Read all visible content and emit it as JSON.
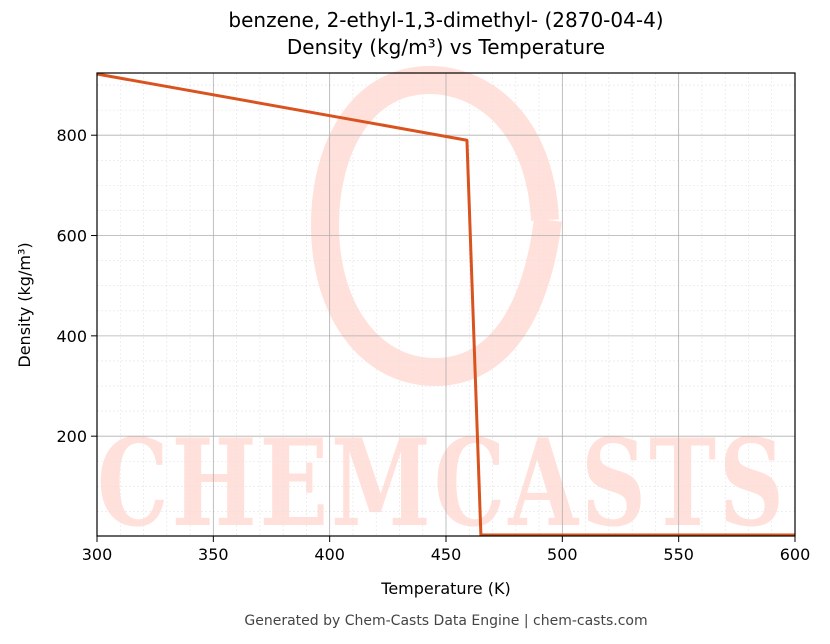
{
  "chart_data": {
    "type": "line",
    "title": "benzene, 2-ethyl-1,3-dimethyl- (2870-04-4)",
    "subtitle": "Density (kg/m³) vs Temperature",
    "x_label": "Temperature (K)",
    "y_label": "Density (kg/m³)",
    "x": [
      300,
      459,
      465,
      600
    ],
    "series": [
      {
        "name": "Density",
        "color": "#d9531e",
        "values": [
          922,
          790,
          3,
          3
        ]
      }
    ],
    "xlim": [
      300,
      600
    ],
    "xticks": [
      300,
      350,
      400,
      450,
      500,
      550,
      600
    ],
    "ylim": [
      1,
      924
    ],
    "yticks": [
      200,
      400,
      600,
      800
    ],
    "grid": true,
    "watermark": "CHEMCASTS",
    "footer": "Generated by Chem-Casts Data Engine | chem-casts.com"
  }
}
